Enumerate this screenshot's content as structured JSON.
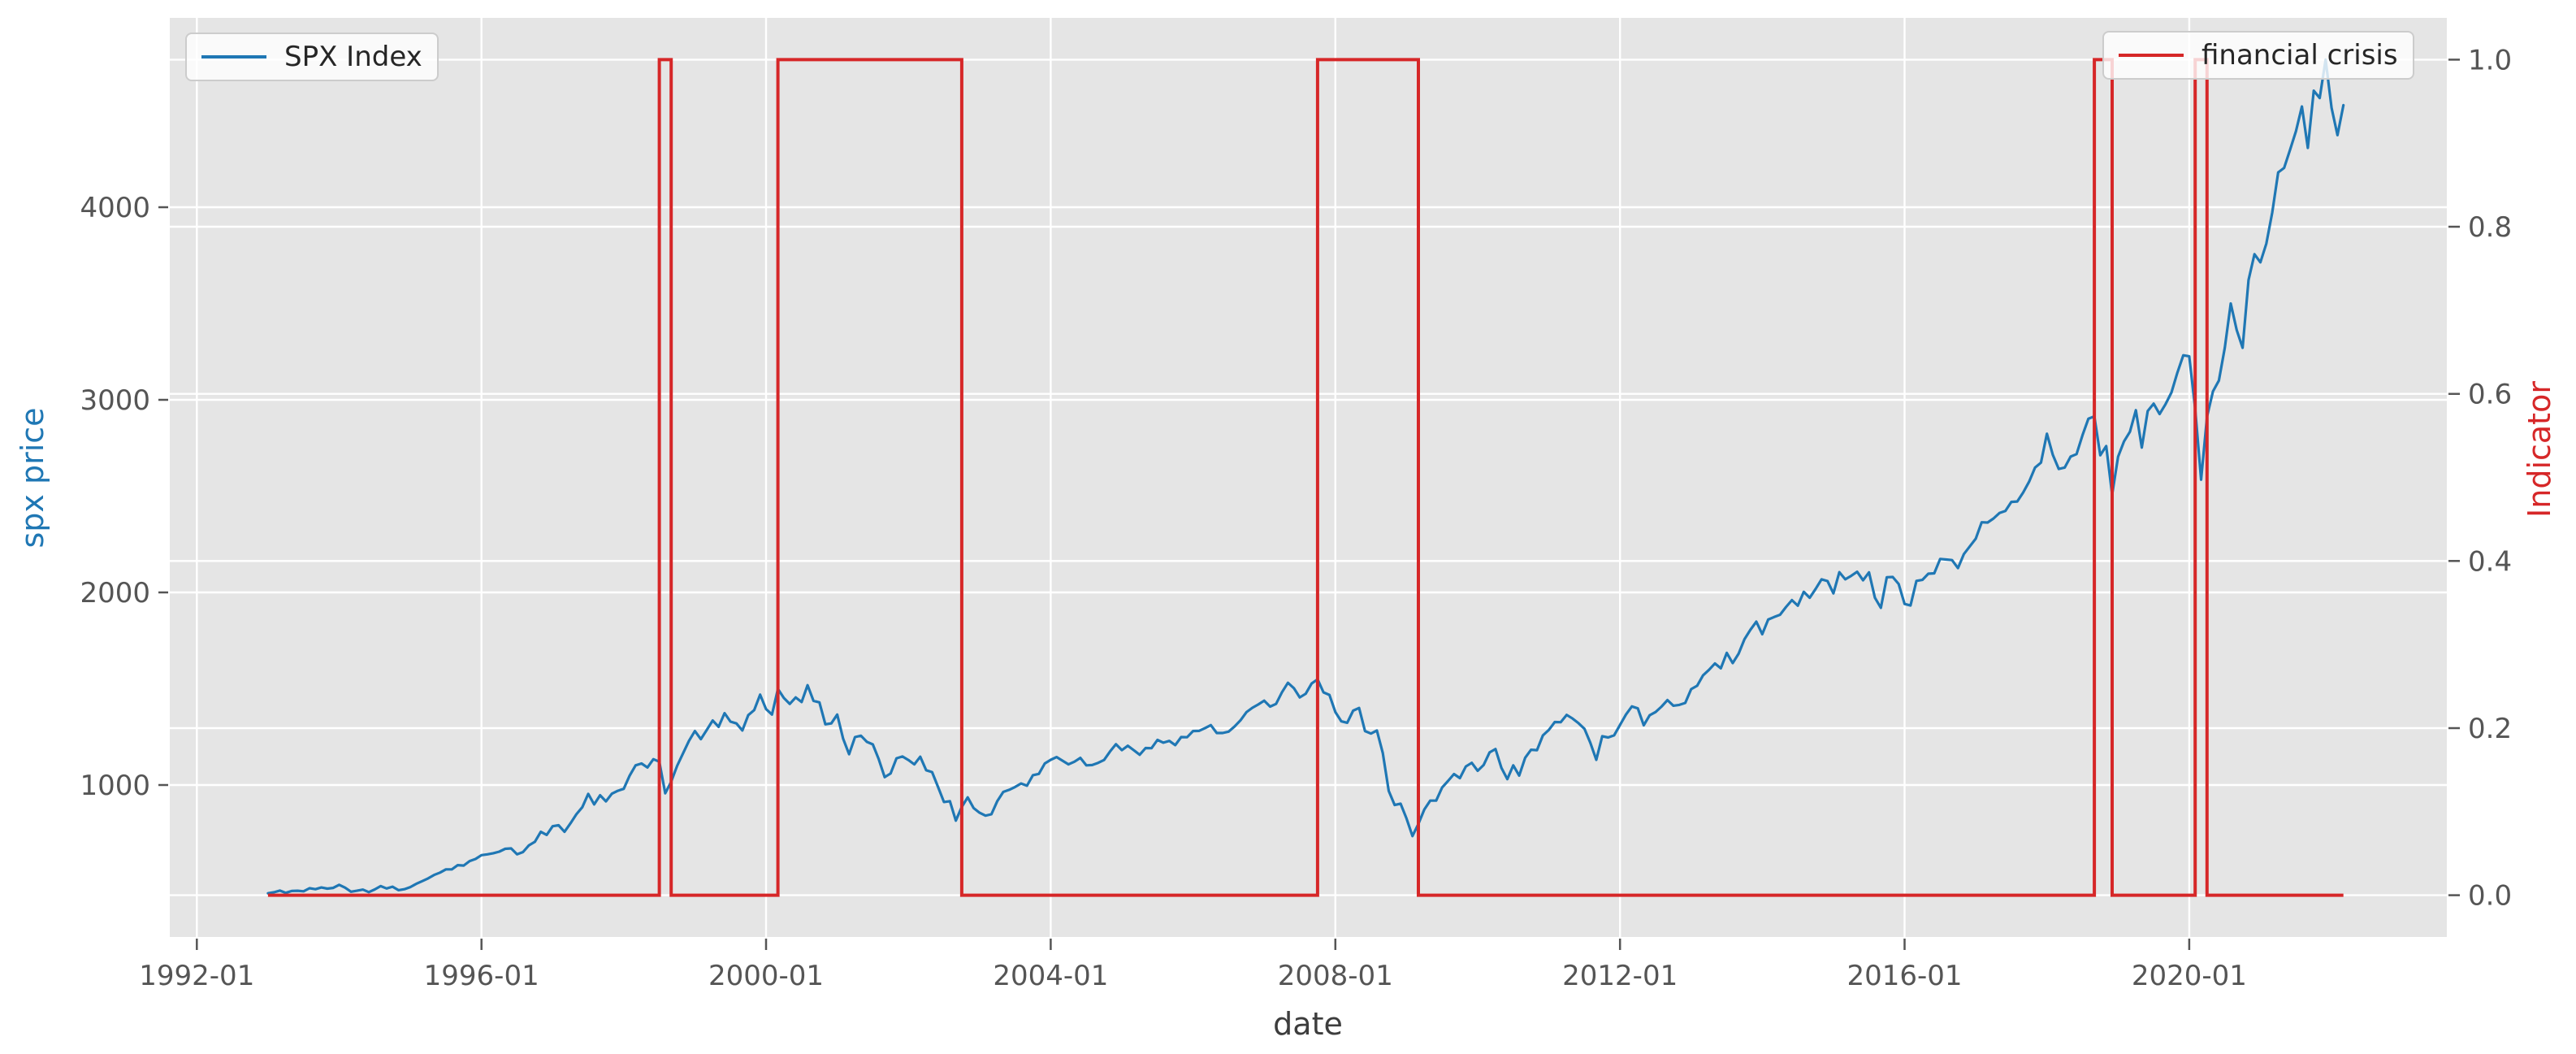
{
  "chart_data": {
    "type": "line",
    "title": "",
    "xlabel": "date",
    "ylabel_left": "spx price",
    "ylabel_right": "Indicator",
    "x_ticks": [
      "1992-01",
      "1996-01",
      "2000-01",
      "2004-01",
      "2008-01",
      "2012-01",
      "2016-01",
      "2020-01"
    ],
    "y_ticks_left": [
      1000,
      2000,
      3000,
      4000
    ],
    "y_ticks_right": [
      "0.0",
      "0.2",
      "0.4",
      "0.6",
      "0.8",
      "1.0"
    ],
    "xlim_years": [
      1991.62,
      2023.62
    ],
    "ylim_left": [
      211,
      4983
    ],
    "ylim_right": [
      -0.05,
      1.05
    ],
    "grid": true,
    "legend_positions": [
      "upper left",
      "upper right"
    ],
    "plot_background": "#e5e5e5",
    "gridline_color": "#ffffff",
    "tick_color": "#555555",
    "series": [
      {
        "name": "SPX Index",
        "axis": "left",
        "color": "#1f77b4",
        "start": "1993-01",
        "freq": "monthly",
        "values": [
          438,
          443,
          452,
          440,
          450,
          451,
          448,
          464,
          459,
          468,
          462,
          466,
          482,
          467,
          446,
          451,
          457,
          444,
          458,
          475,
          463,
          472,
          454,
          459,
          470,
          487,
          501,
          515,
          533,
          545,
          562,
          562,
          584,
          582,
          605,
          616,
          636,
          640,
          646,
          654,
          669,
          671,
          640,
          652,
          687,
          705,
          757,
          741,
          786,
          791,
          757,
          801,
          848,
          885,
          954,
          899,
          947,
          915,
          955,
          970,
          980,
          1049,
          1102,
          1112,
          1091,
          1134,
          1121,
          957,
          1017,
          1099,
          1164,
          1229,
          1280,
          1238,
          1286,
          1335,
          1302,
          1373,
          1329,
          1320,
          1283,
          1363,
          1389,
          1469,
          1394,
          1366,
          1499,
          1452,
          1421,
          1455,
          1431,
          1518,
          1437,
          1429,
          1315,
          1320,
          1366,
          1240,
          1160,
          1249,
          1256,
          1224,
          1211,
          1134,
          1041,
          1060,
          1139,
          1148,
          1130,
          1107,
          1147,
          1077,
          1067,
          990,
          912,
          916,
          815,
          886,
          936,
          880,
          856,
          841,
          848,
          917,
          964,
          975,
          990,
          1008,
          996,
          1051,
          1058,
          1112,
          1131,
          1145,
          1126,
          1107,
          1121,
          1141,
          1102,
          1104,
          1115,
          1130,
          1174,
          1212,
          1181,
          1204,
          1181,
          1157,
          1192,
          1191,
          1234,
          1220,
          1229,
          1207,
          1249,
          1248,
          1280,
          1281,
          1295,
          1311,
          1270,
          1270,
          1277,
          1304,
          1336,
          1378,
          1401,
          1418,
          1438,
          1407,
          1421,
          1482,
          1531,
          1503,
          1455,
          1474,
          1527,
          1549,
          1481,
          1468,
          1379,
          1331,
          1323,
          1386,
          1400,
          1280,
          1267,
          1283,
          1166,
          969,
          896,
          903,
          826,
          735,
          798,
          873,
          919,
          919,
          987,
          1021,
          1057,
          1036,
          1096,
          1115,
          1074,
          1104,
          1169,
          1187,
          1089,
          1031,
          1102,
          1049,
          1141,
          1183,
          1181,
          1258,
          1286,
          1327,
          1326,
          1364,
          1345,
          1321,
          1292,
          1219,
          1131,
          1253,
          1247,
          1258,
          1312,
          1366,
          1408,
          1398,
          1310,
          1362,
          1379,
          1407,
          1441,
          1412,
          1416,
          1426,
          1498,
          1515,
          1569,
          1598,
          1631,
          1606,
          1686,
          1633,
          1682,
          1757,
          1806,
          1848,
          1783,
          1859,
          1872,
          1884,
          1924,
          1960,
          1931,
          2003,
          1972,
          2018,
          2068,
          2059,
          1995,
          2105,
          2068,
          2086,
          2107,
          2063,
          2104,
          1972,
          1920,
          2079,
          2080,
          2044,
          1940,
          1932,
          2060,
          2065,
          2097,
          2099,
          2174,
          2171,
          2168,
          2126,
          2199,
          2239,
          2279,
          2364,
          2363,
          2384,
          2412,
          2423,
          2470,
          2472,
          2519,
          2575,
          2648,
          2674,
          2824,
          2714,
          2641,
          2648,
          2705,
          2718,
          2816,
          2902,
          2914,
          2712,
          2760,
          2507,
          2704,
          2784,
          2834,
          2946,
          2752,
          2942,
          2980,
          2926,
          2977,
          3038,
          3141,
          3231,
          3226,
          2954,
          2585,
          2912,
          3044,
          3100,
          3271,
          3500,
          3363,
          3270,
          3622,
          3756,
          3714,
          3811,
          3973,
          4181,
          4204,
          4298,
          4395,
          4523,
          4308,
          4605,
          4567,
          4766,
          4516,
          4374,
          4530
        ]
      },
      {
        "name": "financial crisis",
        "axis": "right",
        "color": "#d62728",
        "type": "step",
        "baseline_value": 0,
        "high_value": 1,
        "start": "1993-01",
        "end": "2022-03",
        "crisis_periods": [
          [
            "1998-07",
            "1998-09"
          ],
          [
            "2000-03",
            "2002-10"
          ],
          [
            "2007-10",
            "2009-03"
          ],
          [
            "2018-09",
            "2018-12"
          ],
          [
            "2020-02",
            "2020-04"
          ]
        ]
      }
    ],
    "legends": [
      {
        "label": "SPX Index",
        "color": "#1f77b4"
      },
      {
        "label": "financial crisis",
        "color": "#d62728"
      }
    ]
  }
}
